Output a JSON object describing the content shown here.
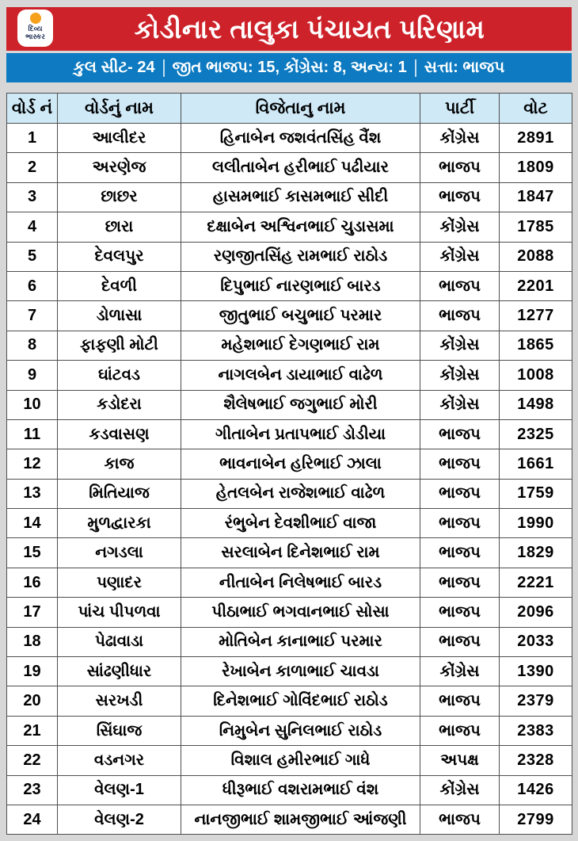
{
  "meta": {
    "app": "news-infographic",
    "language": "Gujarati",
    "bg_color": "#d7d7d7"
  },
  "header": {
    "title": "કોડીનાર તાલુકા પંચાયત પરિણામ",
    "bg_color": "#cd222a",
    "text_color": "#ffffff",
    "logo": {
      "name": "divya-bhaskar-logo",
      "line1": "દિવ્ય",
      "line2": "ભાસ્કર",
      "dot_color": "#f5a11c",
      "text_color": "#1c2b52",
      "bg_color": "#ffffff"
    }
  },
  "subheader": {
    "bg_color": "#0d7ac1",
    "text_color": "#ffffff",
    "segments": [
      "કુલ સીટ- 24",
      "જીત ભાજપ: 15, કોંગ્રેસ: 8, અન્ય: 1",
      "સત્તા: ભાજપ"
    ]
  },
  "chart_data": {
    "type": "table",
    "title": "કોડીનાર તાલુકા પંચાયત પરિણામ",
    "summary": "કુલ સીટ- 24 | જીત ભાજપ: 15, કોંગ્રેસ: 8, અન્ય: 1 | સત્તા: ભાજપ",
    "header_bg": "#cfe9f7",
    "columns": [
      "વોર્ડ નં",
      "વોર્ડનું નામ",
      "વિજેતાનુ નામ",
      "પાર્ટી",
      "વોટ"
    ],
    "rows": [
      [
        "1",
        "આલીદર",
        "હિનાબેન જશવંતસિંહ વૈંશ",
        "કોંગ્રેસ",
        "2891"
      ],
      [
        "2",
        "અરણેજ",
        "લલીતાબેન હરીભાઈ પઢીયાર",
        "ભાજપ",
        "1809"
      ],
      [
        "3",
        "છાછર",
        "હાસમભાઈ કાસમભાઈ સીદી",
        "ભાજપ",
        "1847"
      ],
      [
        "4",
        "છારા",
        "દક્ષાબેન અશ્વિનભાઈ ચુડાસમા",
        "કોંગ્રેસ",
        "1785"
      ],
      [
        "5",
        "દેવલપુર",
        "રણજીતસિંહ રામભાઈ રાઠોડ",
        "કોંગ્રેસ",
        "2088"
      ],
      [
        "6",
        "દેવળી",
        "દિપુભાઈ નારણભાઈ બારડ",
        "ભાજપ",
        "2201"
      ],
      [
        "7",
        "ડોળાસા",
        "જીતુભાઈ બચુભાઈ પરમાર",
        "ભાજપ",
        "1277"
      ],
      [
        "8",
        "ફાફણી મોટી",
        "મહેશભાઈ દેગણભાઈ રામ",
        "કોંગ્રેસ",
        "1865"
      ],
      [
        "9",
        "ઘાંટવડ",
        "નાગલબેન ડાયાભાઈ વાઢેળ",
        "કોંગ્રેસ",
        "1008"
      ],
      [
        "10",
        "કડોદરા",
        "શૈલેષભાઈ જગુભાઈ મોરી",
        "કોંગ્રેસ",
        "1498"
      ],
      [
        "11",
        "કડવાસણ",
        "ગીતાબેન પ્રતાપભાઈ ડોડીયા",
        "ભાજપ",
        "2325"
      ],
      [
        "12",
        "કાજ",
        "ભાવનાબેન હરિભાઈ ઝાલા",
        "ભાજપ",
        "1661"
      ],
      [
        "13",
        "મિતિયાજ",
        "હેતલબેન રાજેશભાઈ વાઢેળ",
        "ભાજપ",
        "1759"
      ],
      [
        "14",
        "મુળદ્વારકા",
        "રંભુબેન દેવશીભાઈ વાજા",
        "ભાજપ",
        "1990"
      ],
      [
        "15",
        "નગડલા",
        "સરલાબેન દિનેશભાઈ રામ",
        "ભાજપ",
        "1829"
      ],
      [
        "16",
        "પણાદર",
        "નીતાબેન નિલેષભાઈ બારડ",
        "ભાજપ",
        "2221"
      ],
      [
        "17",
        "પાંચ પીપળવા",
        "પીઠાભાઈ ભગવાનભાઈ સોસા",
        "ભાજપ",
        "2096"
      ],
      [
        "18",
        "પેઢાવાડા",
        "મોતિબેન કાનાભાઈ પરમાર",
        "ભાજપ",
        "2033"
      ],
      [
        "19",
        "સાંઢણીધાર",
        "રેખાબેન કાળાભાઈ ચાવડા",
        "કોંગ્રેસ",
        "1390"
      ],
      [
        "20",
        "સરખડી",
        "દિનેશભાઈ ગોવિંદભાઈ રાઠોડ",
        "ભાજપ",
        "2379"
      ],
      [
        "21",
        "સિંઘાજ",
        "નિમુબેન સુનિલભાઈ રાઠોડ",
        "ભાજપ",
        "2383"
      ],
      [
        "22",
        "વડનગર",
        "વિશાલ હમીરભાઈ ગાધે",
        "અપક્ષ",
        "2328"
      ],
      [
        "23",
        "વેલણ-1",
        "ધીરૂભાઈ વશરામભાઈ વંશ",
        "કોંગ્રેસ",
        "1426"
      ],
      [
        "24",
        "વેલણ-2",
        "નાનજીભાઈ શામજીભાઈ આંજણી",
        "ભાજપ",
        "2799"
      ]
    ]
  }
}
